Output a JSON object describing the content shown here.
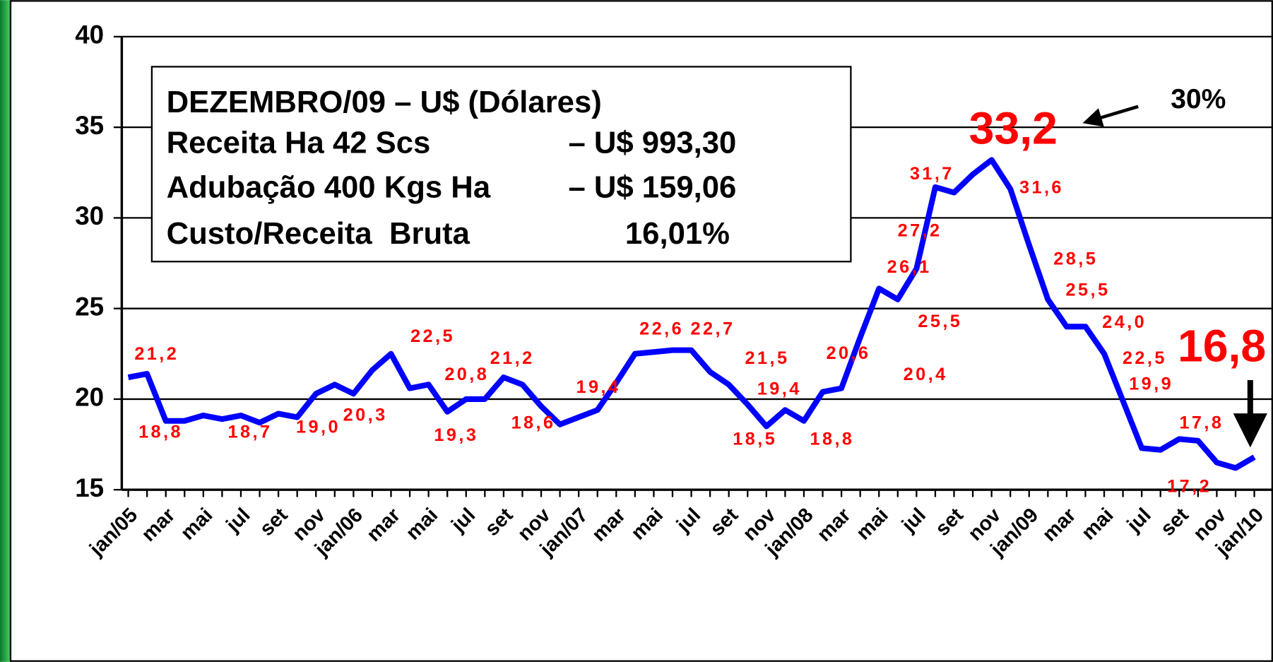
{
  "chart_data": {
    "type": "line",
    "categories": [
      "jan/05",
      null,
      "mar",
      null,
      "mai",
      null,
      "jul",
      null,
      "set",
      null,
      "nov",
      null,
      "jan/06",
      null,
      "mar",
      null,
      "mai",
      null,
      "jul",
      null,
      "set",
      null,
      "nov",
      null,
      "jan/07",
      null,
      "mar",
      null,
      "mai",
      null,
      "jul",
      null,
      "set",
      null,
      "nov",
      null,
      "jan/08",
      null,
      "mar",
      null,
      "mai",
      null,
      "jul",
      null,
      "set",
      null,
      "nov",
      null,
      "jan/09",
      null,
      "mar",
      null,
      "mai",
      null,
      "jul",
      null,
      "set",
      null,
      "nov",
      null,
      "jan/10"
    ],
    "series": [
      {
        "color": "#0000ff",
        "values": [
          21.2,
          21.4,
          18.8,
          18.8,
          19.1,
          18.9,
          19.1,
          18.7,
          19.2,
          19.0,
          20.3,
          20.8,
          20.3,
          21.6,
          22.5,
          20.6,
          20.8,
          19.3,
          20.0,
          20.0,
          21.2,
          20.8,
          19.6,
          18.6,
          19.0,
          19.4,
          20.9,
          22.5,
          22.6,
          22.7,
          22.7,
          21.5,
          20.8,
          19.7,
          18.5,
          19.4,
          18.8,
          20.4,
          20.6,
          23.4,
          26.1,
          25.5,
          27.2,
          31.7,
          31.4,
          32.4,
          33.2,
          31.6,
          28.5,
          25.5,
          24.0,
          24.0,
          22.5,
          19.9,
          17.3,
          17.2,
          17.8,
          17.7,
          16.5,
          16.2,
          16.8
        ],
        "value_labels": [
          "21,2",
          null,
          "18,8",
          null,
          null,
          null,
          null,
          "18,7",
          null,
          "19,0",
          null,
          null,
          "20,3",
          null,
          "22,5",
          null,
          "20,8",
          "19,3",
          null,
          null,
          "21,2",
          null,
          null,
          "18,6",
          null,
          "19,4",
          null,
          null,
          "22,6",
          null,
          "22,7",
          "21,5",
          null,
          null,
          "18,5",
          "19,4",
          "18,8",
          "20,4",
          "20,6",
          null,
          "26,1",
          "25,5",
          "27,2",
          "31,7",
          null,
          null,
          "33,2",
          "31,6",
          "28,5",
          "25,5",
          "24,0",
          null,
          "22,5",
          "19,9",
          null,
          "17,2",
          "17,8",
          null,
          null,
          null,
          "16,8"
        ]
      }
    ],
    "label_color": "#ff0000",
    "ylim": [
      15,
      40
    ],
    "yticks": [
      15,
      20,
      25,
      30,
      35,
      40
    ],
    "grid": true,
    "info_box": [
      [
        "DEZEMBRO/09 – U$ (Dólares)"
      ],
      [
        "Receita Ha 42 Scs",
        "– U$ 993,30"
      ],
      [
        "Adubação 400 Kgs Ha",
        "– U$ 159,06"
      ],
      [
        "Custo/Receita  Bruta",
        "16,01%"
      ]
    ],
    "annotation": "30%"
  }
}
